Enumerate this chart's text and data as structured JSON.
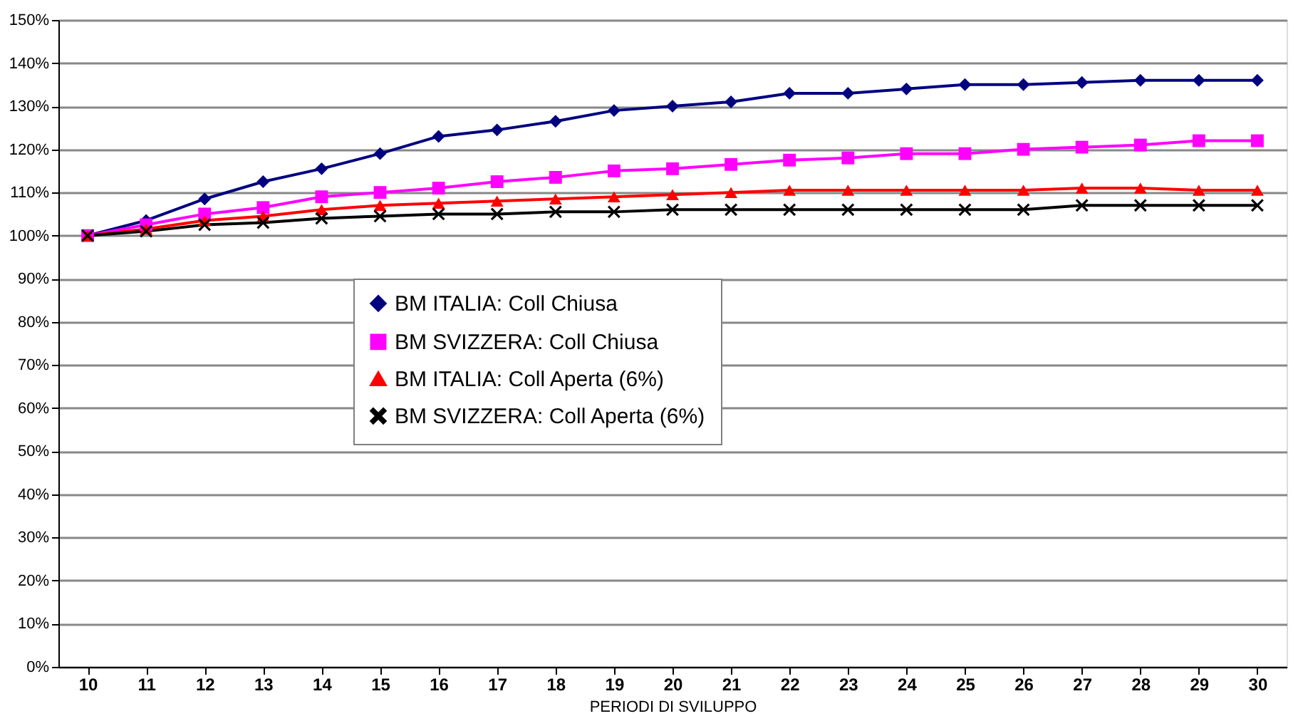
{
  "chart_data": {
    "type": "line",
    "xlabel": "PERIODI DI SVILUPPO",
    "categories": [
      "10",
      "11",
      "12",
      "13",
      "14",
      "15",
      "16",
      "17",
      "18",
      "19",
      "20",
      "21",
      "22",
      "23",
      "24",
      "25",
      "26",
      "27",
      "28",
      "29",
      "30"
    ],
    "series": [
      {
        "name": "BM ITALIA: Coll Chiusa",
        "color": "#000080",
        "marker": "diamond",
        "values": [
          100,
          103.5,
          108.5,
          112.5,
          115.5,
          119,
          123,
          124.5,
          126.5,
          129,
          130,
          131,
          133,
          133,
          134,
          135,
          135,
          135.5,
          136,
          136,
          136
        ]
      },
      {
        "name": "BM SVIZZERA: Coll Chiusa",
        "color": "#ff00ff",
        "marker": "square",
        "values": [
          100,
          102.5,
          105,
          106.5,
          109,
          110,
          111,
          112.5,
          113.5,
          115,
          115.5,
          116.5,
          117.5,
          118,
          119,
          119,
          120,
          120.5,
          121,
          122,
          122
        ]
      },
      {
        "name": "BM ITALIA: Coll Aperta (6%)",
        "color": "#ff0000",
        "marker": "triangle",
        "values": [
          100,
          101.5,
          103.5,
          104.5,
          106,
          107,
          107.5,
          108,
          108.5,
          109,
          109.5,
          110,
          110.5,
          110.5,
          110.5,
          110.5,
          110.5,
          111,
          111,
          110.5,
          110.5
        ]
      },
      {
        "name": "BM SVIZZERA: Coll Aperta (6%)",
        "color": "#000000",
        "marker": "cross",
        "values": [
          100,
          101,
          102.5,
          103,
          104,
          104.5,
          105,
          105,
          105.5,
          105.5,
          106,
          106,
          106,
          106,
          106,
          106,
          106,
          107,
          107,
          107,
          107
        ]
      }
    ],
    "ylim": [
      0,
      150
    ],
    "yticks": [
      {
        "value": 0,
        "label": "0%"
      },
      {
        "value": 10,
        "label": "10%"
      },
      {
        "value": 20,
        "label": "20%"
      },
      {
        "value": 30,
        "label": "30%"
      },
      {
        "value": 40,
        "label": "40%"
      },
      {
        "value": 50,
        "label": "50%"
      },
      {
        "value": 60,
        "label": "60%"
      },
      {
        "value": 70,
        "label": "70%"
      },
      {
        "value": 80,
        "label": "80%"
      },
      {
        "value": 90,
        "label": "90%"
      },
      {
        "value": 100,
        "label": "100%"
      },
      {
        "value": 110,
        "label": "110%"
      },
      {
        "value": 120,
        "label": "120%"
      },
      {
        "value": 130,
        "label": "130%"
      },
      {
        "value": 140,
        "label": "140%"
      },
      {
        "value": 150,
        "label": "150%"
      }
    ],
    "grid": "y",
    "legend": "center",
    "line_style": "solid"
  }
}
